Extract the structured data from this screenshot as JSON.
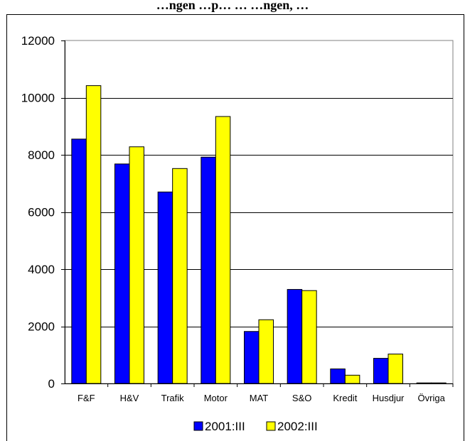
{
  "chart_data": {
    "type": "bar",
    "title": "…ngen …p… … …ngen, …",
    "xlabel": "",
    "ylabel": "",
    "ylim": [
      0,
      12000
    ],
    "yticks": [
      "0",
      "2000",
      "4000",
      "6000",
      "8000",
      "10000",
      "12000"
    ],
    "grid": true,
    "legend": "bottom",
    "categories": [
      "F&F",
      "H&V",
      "Trafik",
      "Motor",
      "MAT",
      "S&O",
      "Kredit",
      "Husdjur",
      "Övriga"
    ],
    "series": [
      {
        "name": "2001:III",
        "color": "#0000ff",
        "values": [
          8550,
          7680,
          6700,
          7920,
          1820,
          3290,
          510,
          880,
          20
        ]
      },
      {
        "name": "2002:III",
        "color": "#ffff00",
        "values": [
          10420,
          8280,
          7520,
          9340,
          2230,
          3250,
          290,
          1030,
          20
        ]
      }
    ]
  }
}
